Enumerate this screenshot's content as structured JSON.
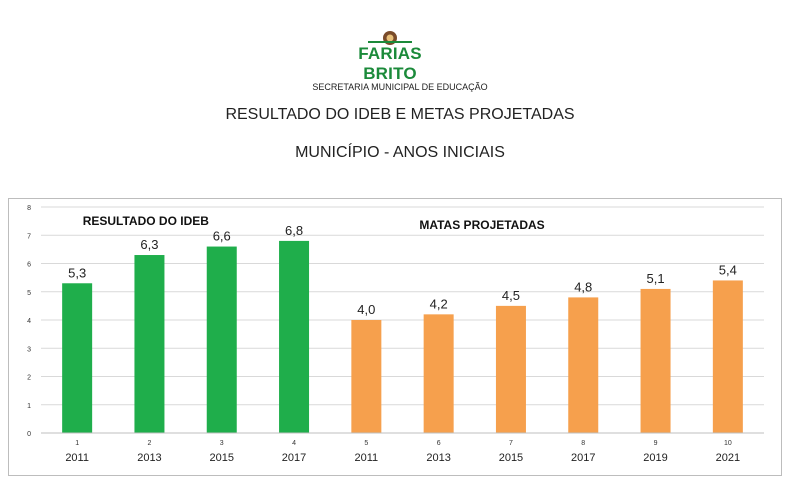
{
  "header": {
    "logo_text": "FARIAS BRITO",
    "secretaria": "SECRETARIA MUNICIPAL DE EDUCAÇÃO",
    "title_line1": "RESULTADO DO IDEB E METAS PROJETADAS",
    "title_line2": "MUNICÍPIO - ANOS INICIAIS"
  },
  "chart_data": {
    "type": "bar",
    "categories": [
      "1",
      "2",
      "3",
      "4",
      "5",
      "6",
      "7",
      "8",
      "9",
      "10"
    ],
    "years": [
      "2011",
      "2013",
      "2015",
      "2017",
      "2011",
      "2013",
      "2015",
      "2017",
      "2019",
      "2021"
    ],
    "values": [
      5.3,
      6.3,
      6.6,
      6.8,
      4.0,
      4.2,
      4.5,
      4.8,
      5.1,
      5.4
    ],
    "data_labels": [
      "5,3",
      "6,3",
      "6,6",
      "6,8",
      "4,0",
      "4,2",
      "4,5",
      "4,8",
      "5,1",
      "5,4"
    ],
    "groups": [
      {
        "label": "RESULTADO DO IDEB",
        "indices": [
          0,
          1,
          2,
          3
        ],
        "color": "#1fae4b"
      },
      {
        "label": "MATAS PROJETADAS",
        "indices": [
          4,
          5,
          6,
          7,
          8,
          9
        ],
        "color": "#f6a04d"
      }
    ],
    "ylim": [
      0,
      8
    ],
    "yticks": [
      0,
      1,
      2,
      3,
      4,
      5,
      6,
      7,
      8
    ],
    "grid": true
  }
}
